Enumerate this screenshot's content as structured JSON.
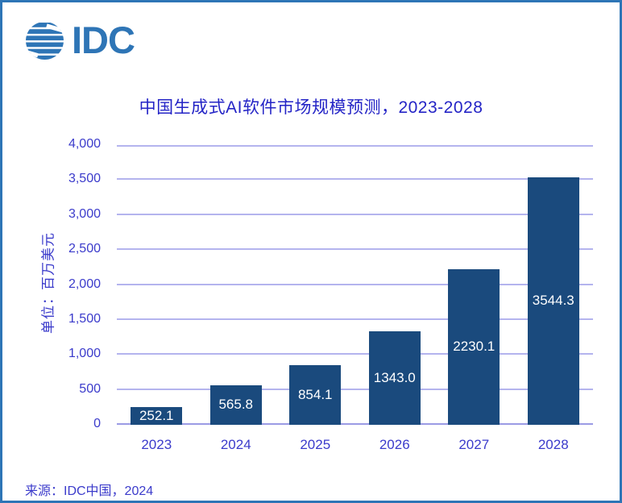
{
  "logo": {
    "text": "IDC",
    "color": "#2E75B6"
  },
  "page": {
    "border_color": "#2E75B6",
    "background": "#FFFFFF"
  },
  "chart_data": {
    "type": "bar",
    "title": "中国生成式AI软件市场规模预测，2023-2028",
    "categories": [
      "2023",
      "2024",
      "2025",
      "2026",
      "2027",
      "2028"
    ],
    "values": [
      252.1,
      565.8,
      854.1,
      1343.0,
      2230.1,
      3544.3
    ],
    "value_labels": [
      "252.1",
      "565.8",
      "854.1",
      "1343.0",
      "2230.1",
      "3544.3"
    ],
    "xlabel": "",
    "ylabel": "单位：百万美元",
    "ylim": [
      0,
      4000
    ],
    "ytick_step": 500,
    "ytick_labels": [
      "0",
      "500",
      "1,000",
      "1,500",
      "2,000",
      "2,500",
      "3,000",
      "3,500",
      "4,000"
    ],
    "grid": true,
    "legend": false,
    "value_label_position": "center-inside",
    "bar_color": "#1A4A7D",
    "value_label_color": "#FFFFFF",
    "gridline_color": "#B4B4EE",
    "baseline_color": "#9B9BE4",
    "axis_text_color": "#3B3BCB",
    "title_color": "#2424C6"
  },
  "footer": {
    "source": "来源：IDC中国，2024"
  }
}
